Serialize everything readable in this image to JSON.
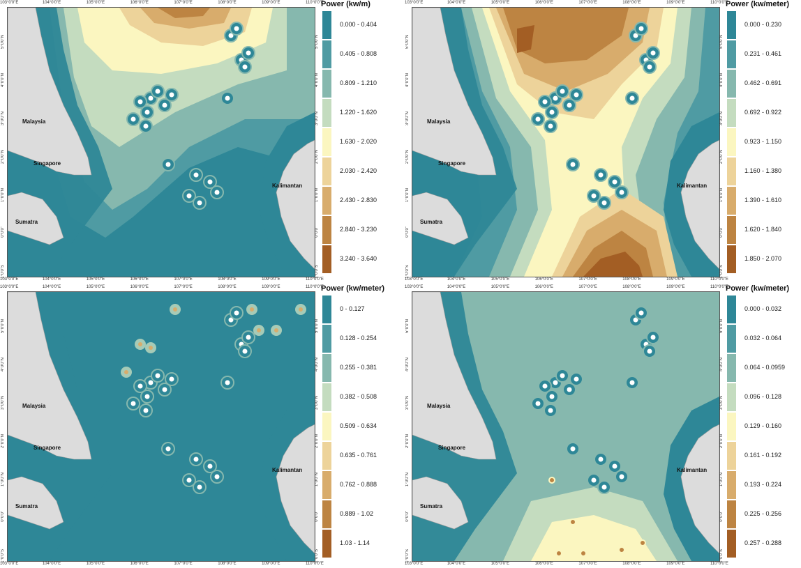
{
  "place_names": {
    "malaysia": "Malaysia",
    "singapore": "Singapore",
    "sumatra": "Sumatra",
    "kalimantan": "Kalimantan"
  },
  "lon_ticks": [
    "103°0'0\"E",
    "104°0'0\"E",
    "105°0'0\"E",
    "106°0'0\"E",
    "107°0'0\"E",
    "108°0'0\"E",
    "109°0'0\"E",
    "110°0'0\"E"
  ],
  "lat_ticks": [
    "5°0'0\"N",
    "4°0'0\"N",
    "3°0'0\"N",
    "2°0'0\"N",
    "1°0'0\"N",
    "0°0'0\"",
    "1°0'0\"S"
  ],
  "colors": {
    "land": "#dcdcdc",
    "coast_teal": "#2a8a9a"
  },
  "panels": [
    {
      "legend_title": "Power (kw/m)",
      "ramp": [
        "#2e8797",
        "#4f9ba3",
        "#86b8ae",
        "#c4dcbf",
        "#fbf6c0",
        "#edd39a",
        "#d8ac6c",
        "#bd8442",
        "#a35e24"
      ],
      "classes": [
        "0.000 - 0.404",
        "0.405 - 0.808",
        "0.809 - 1.210",
        "1.220 - 1.620",
        "1.630 - 2.020",
        "2.030 - 2.420",
        "2.430 - 2.830",
        "2.840 - 3.230",
        "3.240 - 3.640"
      ]
    },
    {
      "legend_title": "Power (kw/meter)",
      "ramp": [
        "#2e8797",
        "#4f9ba3",
        "#86b8ae",
        "#c4dcbf",
        "#fbf6c0",
        "#edd39a",
        "#d8ac6c",
        "#bd8442",
        "#a35e24"
      ],
      "classes": [
        "0.000 - 0.230",
        "0.231 - 0.461",
        "0.462 - 0.691",
        "0.692 - 0.922",
        "0.923 - 1.150",
        "1.160 - 1.380",
        "1.390 - 1.610",
        "1.620 - 1.840",
        "1.850 - 2.070"
      ]
    },
    {
      "legend_title": "Power (kw/meter)",
      "ramp": [
        "#2e8797",
        "#4f9ba3",
        "#86b8ae",
        "#c4dcbf",
        "#fbf6c0",
        "#edd39a",
        "#d8ac6c",
        "#bd8442",
        "#a35e24"
      ],
      "classes": [
        "0 - 0.127",
        "0.128 - 0.254",
        "0.255 - 0.381",
        "0.382 - 0.508",
        "0.509 - 0.634",
        "0.635 - 0.761",
        "0.762 - 0.888",
        "0.889 - 1.02",
        "1.03 - 1.14"
      ]
    },
    {
      "legend_title": "Power (kw/meter)",
      "ramp": [
        "#2e8797",
        "#4f9ba3",
        "#86b8ae",
        "#c4dcbf",
        "#fbf6c0",
        "#edd39a",
        "#d8ac6c",
        "#bd8442",
        "#a35e24"
      ],
      "classes": [
        "0.000 - 0.032",
        "0.032 - 0.064",
        "0.064 - 0.0959",
        "0.096 - 0.128",
        "0.129 - 0.160",
        "0.161 - 0.192",
        "0.193 - 0.224",
        "0.225 - 0.256",
        "0.257 - 0.288"
      ]
    }
  ]
}
